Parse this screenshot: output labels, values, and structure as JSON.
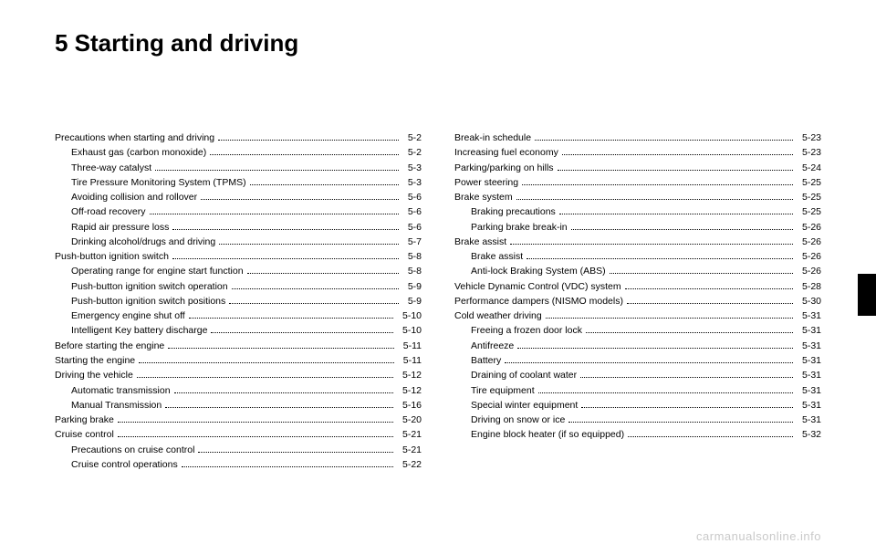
{
  "title": "5 Starting and driving",
  "watermark": "carmanualsonline.info",
  "left": [
    {
      "label": "Precautions when starting and driving",
      "page": "5-2",
      "indent": false
    },
    {
      "label": "Exhaust gas (carbon monoxide)",
      "page": "5-2",
      "indent": true
    },
    {
      "label": "Three-way catalyst",
      "page": "5-3",
      "indent": true
    },
    {
      "label": "Tire Pressure Monitoring System (TPMS)",
      "page": "5-3",
      "indent": true
    },
    {
      "label": "Avoiding collision and rollover",
      "page": "5-6",
      "indent": true
    },
    {
      "label": "Off-road recovery",
      "page": "5-6",
      "indent": true
    },
    {
      "label": "Rapid air pressure loss",
      "page": "5-6",
      "indent": true
    },
    {
      "label": "Drinking alcohol/drugs and driving",
      "page": "5-7",
      "indent": true
    },
    {
      "label": "Push-button ignition switch",
      "page": "5-8",
      "indent": false
    },
    {
      "label": "Operating range for engine start function",
      "page": "5-8",
      "indent": true
    },
    {
      "label": "Push-button ignition switch operation",
      "page": "5-9",
      "indent": true
    },
    {
      "label": "Push-button ignition switch positions",
      "page": "5-9",
      "indent": true
    },
    {
      "label": "Emergency engine shut off",
      "page": "5-10",
      "indent": true
    },
    {
      "label": "Intelligent Key battery discharge",
      "page": "5-10",
      "indent": true
    },
    {
      "label": "Before starting the engine",
      "page": "5-11",
      "indent": false
    },
    {
      "label": "Starting the engine",
      "page": "5-11",
      "indent": false
    },
    {
      "label": "Driving the vehicle",
      "page": "5-12",
      "indent": false
    },
    {
      "label": "Automatic transmission",
      "page": "5-12",
      "indent": true
    },
    {
      "label": "Manual Transmission",
      "page": "5-16",
      "indent": true
    },
    {
      "label": "Parking brake",
      "page": "5-20",
      "indent": false
    },
    {
      "label": "Cruise control",
      "page": "5-21",
      "indent": false
    },
    {
      "label": "Precautions on cruise control",
      "page": "5-21",
      "indent": true
    },
    {
      "label": "Cruise control operations",
      "page": "5-22",
      "indent": true
    }
  ],
  "right": [
    {
      "label": "Break-in schedule",
      "page": "5-23",
      "indent": false
    },
    {
      "label": "Increasing fuel economy",
      "page": "5-23",
      "indent": false
    },
    {
      "label": "Parking/parking on hills",
      "page": "5-24",
      "indent": false
    },
    {
      "label": "Power steering",
      "page": "5-25",
      "indent": false
    },
    {
      "label": "Brake system",
      "page": "5-25",
      "indent": false
    },
    {
      "label": "Braking precautions",
      "page": "5-25",
      "indent": true
    },
    {
      "label": "Parking brake break-in",
      "page": "5-26",
      "indent": true
    },
    {
      "label": "Brake assist",
      "page": "5-26",
      "indent": false
    },
    {
      "label": "Brake assist",
      "page": "5-26",
      "indent": true
    },
    {
      "label": "Anti-lock Braking System (ABS)",
      "page": "5-26",
      "indent": true
    },
    {
      "label": "Vehicle Dynamic Control (VDC) system",
      "page": "5-28",
      "indent": false
    },
    {
      "label": "Performance dampers (NISMO models)",
      "page": "5-30",
      "indent": false
    },
    {
      "label": "Cold weather driving",
      "page": "5-31",
      "indent": false
    },
    {
      "label": "Freeing a frozen door lock",
      "page": "5-31",
      "indent": true
    },
    {
      "label": "Antifreeze",
      "page": "5-31",
      "indent": true
    },
    {
      "label": "Battery",
      "page": "5-31",
      "indent": true
    },
    {
      "label": "Draining of coolant water",
      "page": "5-31",
      "indent": true
    },
    {
      "label": "Tire equipment",
      "page": "5-31",
      "indent": true
    },
    {
      "label": "Special winter equipment",
      "page": "5-31",
      "indent": true
    },
    {
      "label": "Driving on snow or ice",
      "page": "5-31",
      "indent": true
    },
    {
      "label": "Engine block heater (if so equipped)",
      "page": "5-32",
      "indent": true
    }
  ]
}
